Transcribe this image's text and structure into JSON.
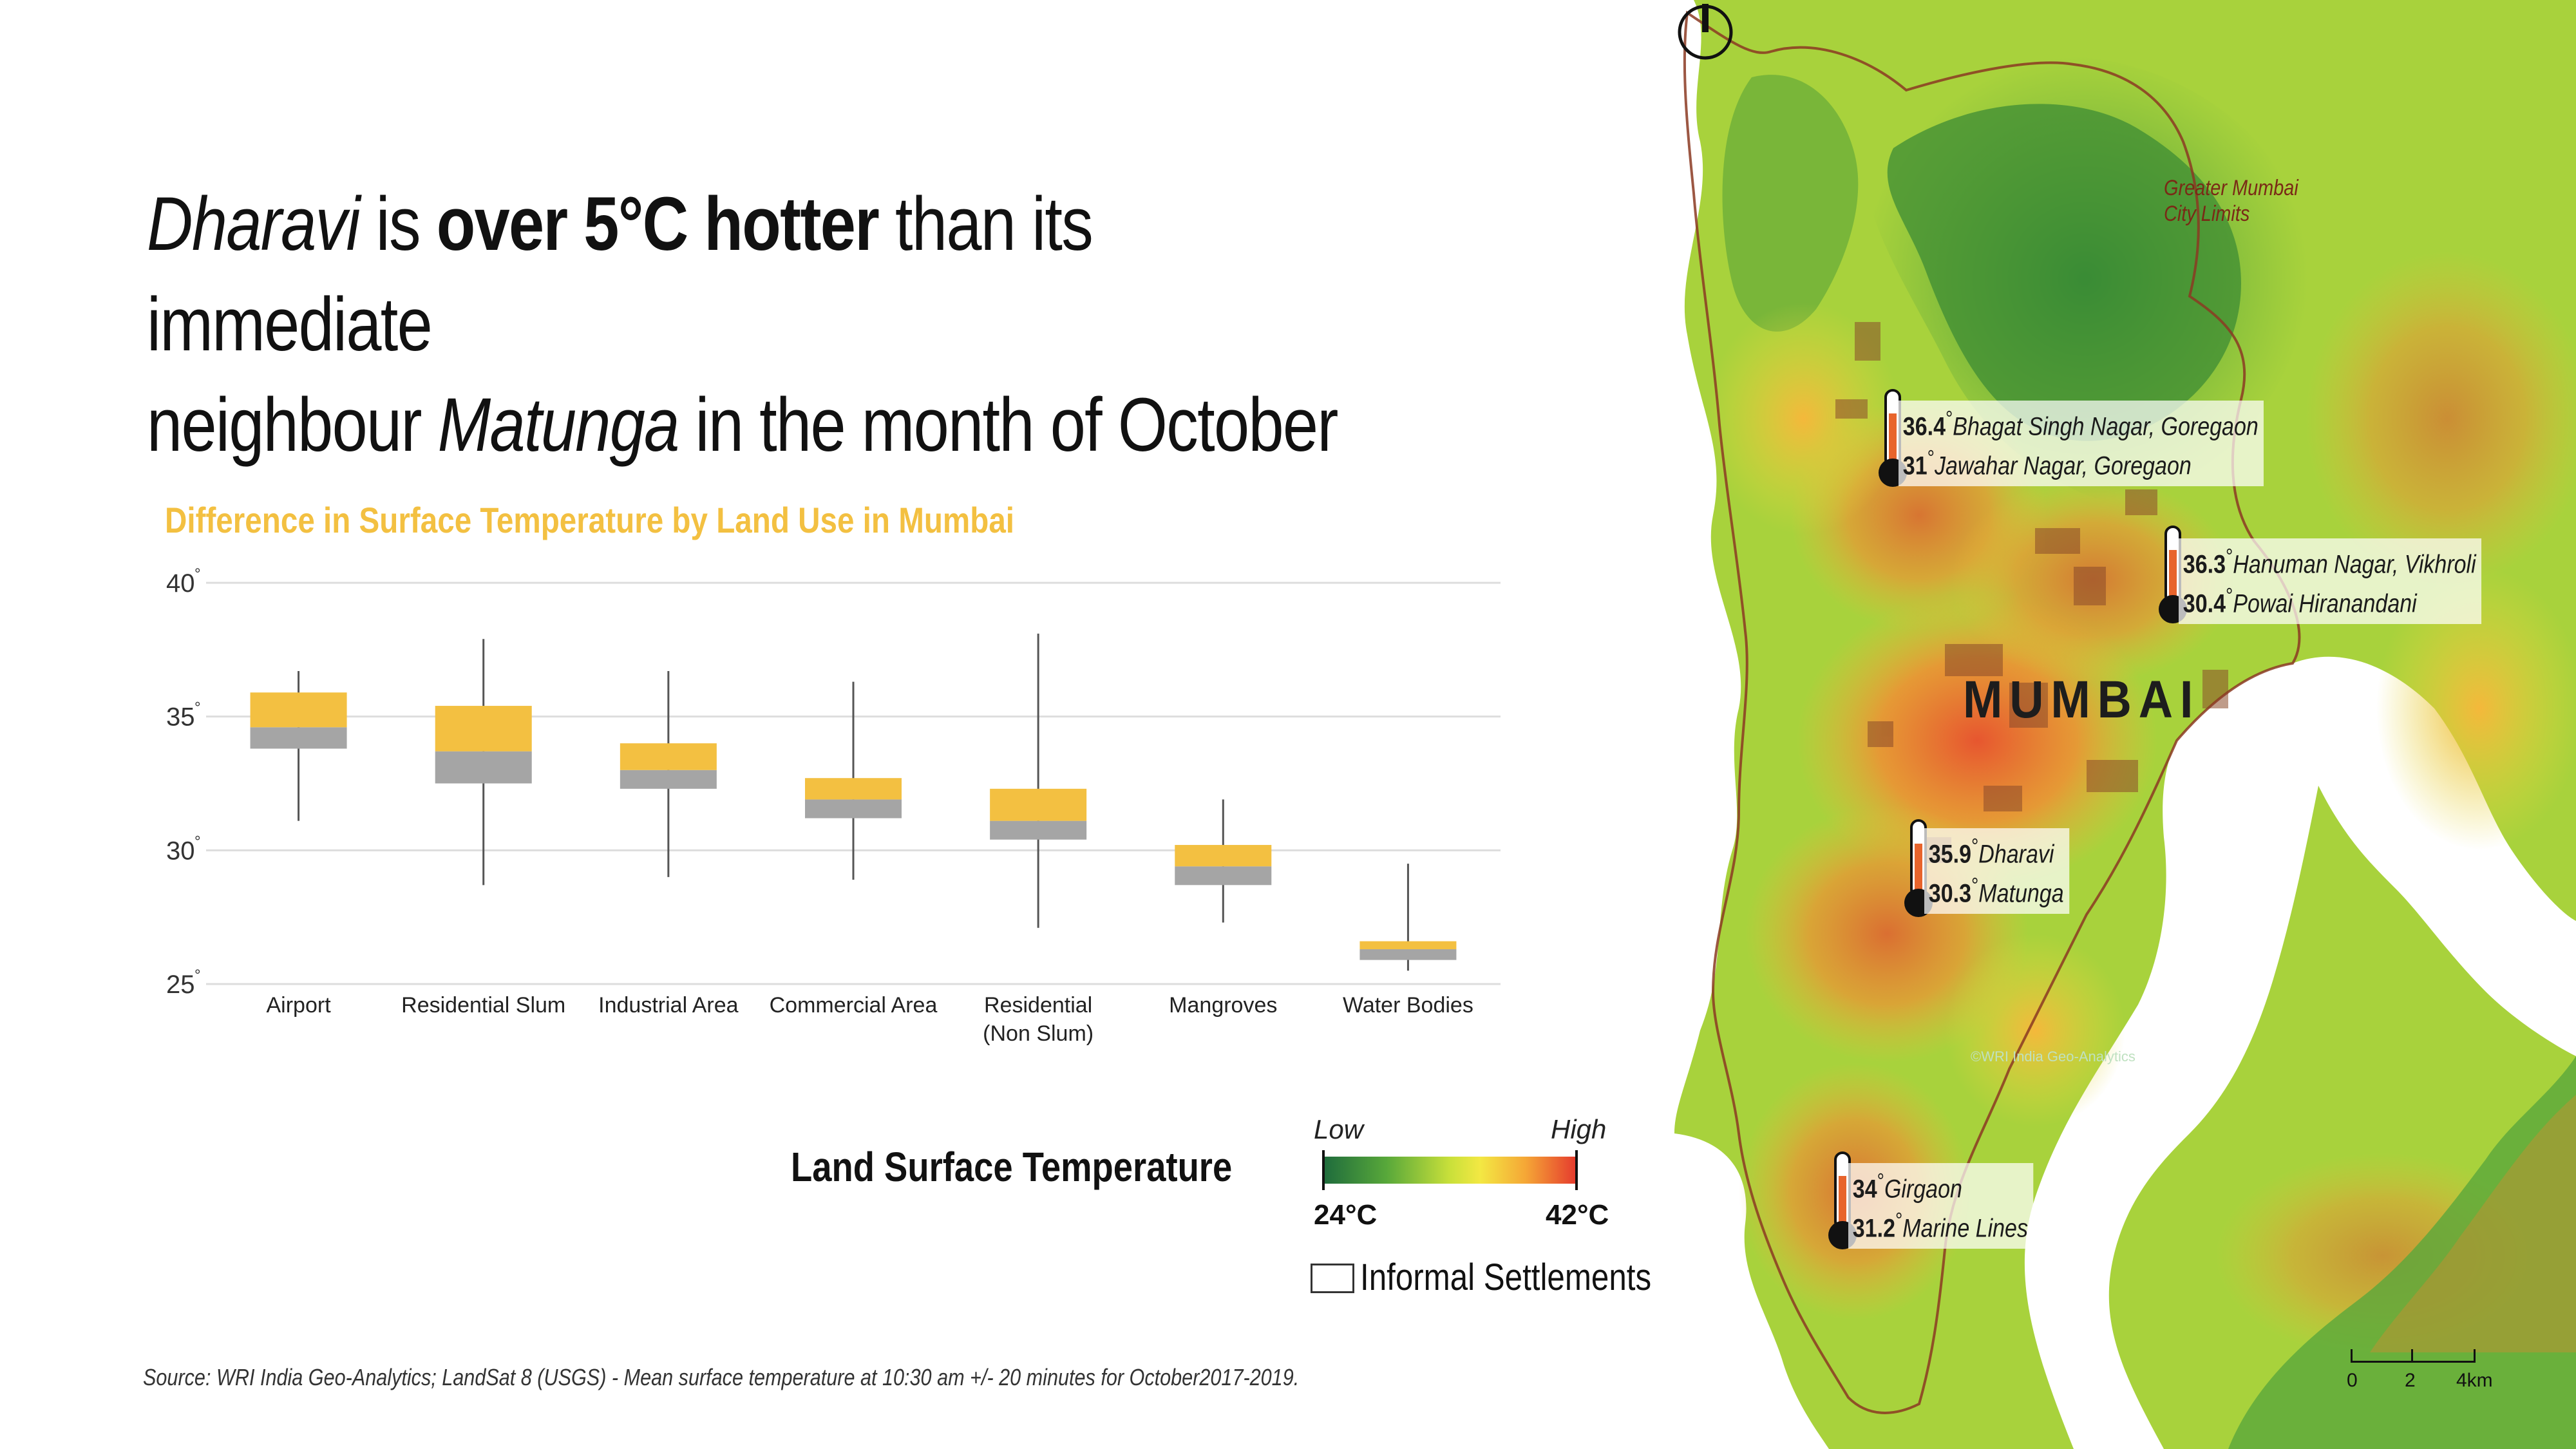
{
  "headline": {
    "t1": "Dharavi",
    "t2": " is ",
    "t3": "over 5°C hotter",
    "t4": " than its immediate",
    "t5": "neighbour ",
    "t6": "Matunga",
    "t7": " in the month of October"
  },
  "chart_data": {
    "type": "box",
    "title": "Difference in Surface Temperature by Land Use in Mumbai",
    "xlabel": "",
    "ylabel": "",
    "ylim": [
      25,
      40
    ],
    "yticks": [
      {
        "value": 25,
        "label": "25"
      },
      {
        "value": 30,
        "label": "30"
      },
      {
        "value": 35,
        "label": "35"
      },
      {
        "value": 40,
        "label": "40"
      }
    ],
    "tick_suffix": "°",
    "grid": true,
    "colors": {
      "upper_box": "#f3c041",
      "lower_box": "#a5a5a5",
      "whisker": "#555555",
      "grid": "#dddddd"
    },
    "categories": [
      "Airport",
      "Residential Slum",
      "Industrial Area",
      "Commercial Area",
      "Residential (Non Slum)",
      "Mangroves",
      "Water Bodies"
    ],
    "category_labels": [
      [
        "Airport"
      ],
      [
        "Residential Slum"
      ],
      [
        "Industrial Area"
      ],
      [
        "Commercial Area"
      ],
      [
        "Residential",
        "(Non Slum)"
      ],
      [
        "Mangroves"
      ],
      [
        "Water Bodies"
      ]
    ],
    "boxes": [
      {
        "min": 31.1,
        "q1": 33.8,
        "median": 34.6,
        "q3": 35.9,
        "max": 36.7
      },
      {
        "min": 28.7,
        "q1": 32.5,
        "median": 33.7,
        "q3": 35.4,
        "max": 37.9
      },
      {
        "min": 29.0,
        "q1": 32.3,
        "median": 33.0,
        "q3": 34.0,
        "max": 36.7
      },
      {
        "min": 28.9,
        "q1": 31.2,
        "median": 31.9,
        "q3": 32.7,
        "max": 36.3
      },
      {
        "min": 27.1,
        "q1": 30.4,
        "median": 31.1,
        "q3": 32.3,
        "max": 38.1
      },
      {
        "min": 27.3,
        "q1": 28.7,
        "median": 29.4,
        "q3": 30.2,
        "max": 31.9
      },
      {
        "min": 25.5,
        "q1": 25.9,
        "median": 26.3,
        "q3": 26.6,
        "max": 29.5
      }
    ]
  },
  "legend": {
    "title": "Land Surface Temperature",
    "low": "Low",
    "high": "High",
    "min": "24°C",
    "max": "42°C",
    "informal": "Informal Settlements"
  },
  "source": "Source: WRI India Geo-Analytics; LandSat 8 (USGS) - Mean surface temperature at 10:30 am +/- 20 minutes for October2017-2019.",
  "map": {
    "city": "MUMBAI",
    "limits_line1": "Greater Mumbai",
    "limits_line2": "City Limits",
    "credit": "©WRI India Geo-Analytics",
    "callouts": [
      {
        "v1": "36.4",
        "p1": "Bhagat Singh Nagar, Goregaon",
        "v2": "31",
        "p2": "Jawahar Nagar, Goregaon"
      },
      {
        "v1": "36.3",
        "p1": "Hanuman Nagar, Vikhroli",
        "v2": "30.4",
        "p2": "Powai Hiranandani"
      },
      {
        "v1": "35.9",
        "p1": "Dharavi",
        "v2": "30.3",
        "p2": "Matunga"
      },
      {
        "v1": "34",
        "p1": "Girgaon",
        "v2": "31.2",
        "p2": "Marine Lines"
      }
    ],
    "deg": "°",
    "scale": {
      "s0": "0",
      "s1": "2",
      "s2": "4km"
    }
  }
}
